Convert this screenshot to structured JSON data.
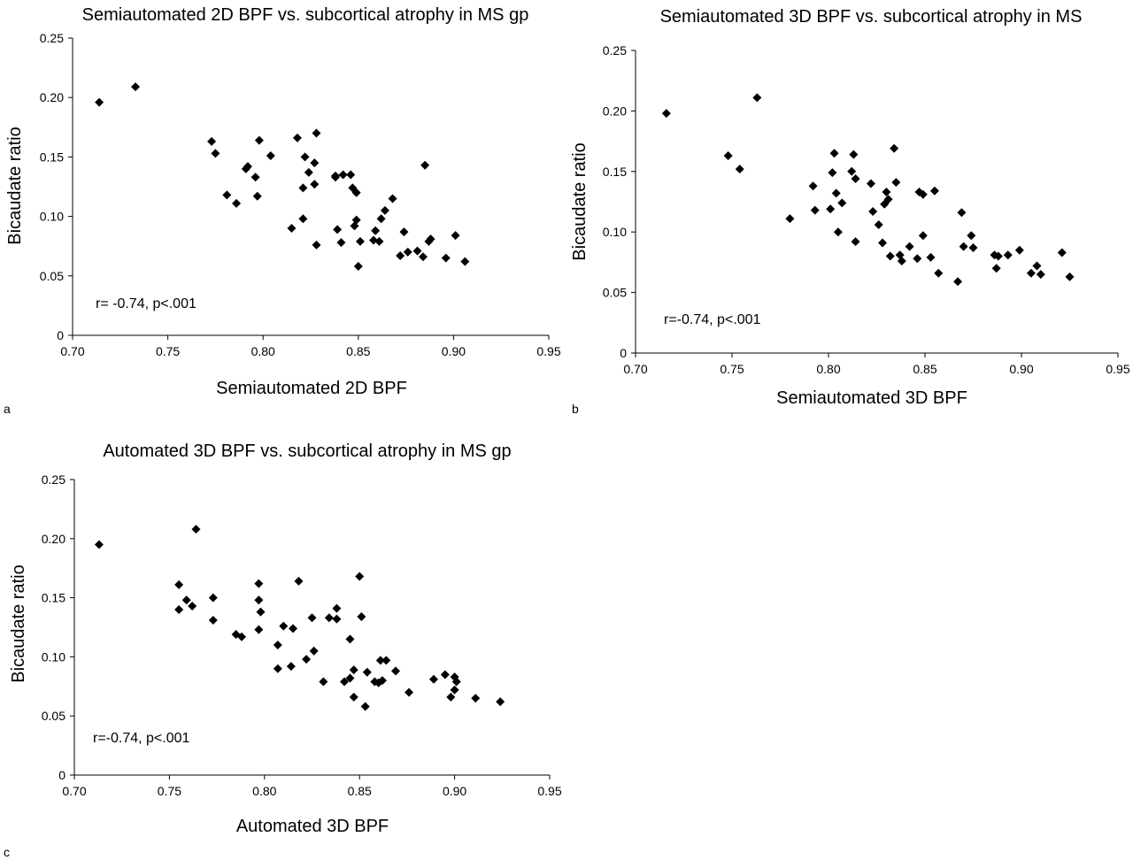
{
  "chart_data": [
    {
      "type": "scatter",
      "panel_label": "a",
      "title": "Semiautomated 2D BPF vs. subcortical atrophy in MS gp",
      "xlabel": "Semiautomated 2D BPF",
      "ylabel": "Bicaudate ratio",
      "xlim": [
        0.7,
        0.95
      ],
      "ylim": [
        0,
        0.25
      ],
      "x_ticks": [
        "0.70",
        "0.75",
        "0.80",
        "0.85",
        "0.90",
        "0.95"
      ],
      "y_ticks": [
        "0",
        "0.05",
        "0.10",
        "0.15",
        "0.20",
        "0.25"
      ],
      "annotation": "r= -0.74, p<.001",
      "marker": "diamond",
      "marker_color": "#000000",
      "grid": false,
      "legend": "none",
      "points": [
        [
          0.714,
          0.196
        ],
        [
          0.733,
          0.209
        ],
        [
          0.773,
          0.163
        ],
        [
          0.775,
          0.153
        ],
        [
          0.781,
          0.118
        ],
        [
          0.786,
          0.111
        ],
        [
          0.791,
          0.14
        ],
        [
          0.792,
          0.142
        ],
        [
          0.796,
          0.133
        ],
        [
          0.797,
          0.117
        ],
        [
          0.798,
          0.164
        ],
        [
          0.804,
          0.151
        ],
        [
          0.815,
          0.09
        ],
        [
          0.818,
          0.166
        ],
        [
          0.821,
          0.124
        ],
        [
          0.821,
          0.098
        ],
        [
          0.822,
          0.15
        ],
        [
          0.824,
          0.137
        ],
        [
          0.827,
          0.145
        ],
        [
          0.827,
          0.127
        ],
        [
          0.828,
          0.17
        ],
        [
          0.828,
          0.076
        ],
        [
          0.838,
          0.134
        ],
        [
          0.838,
          0.133
        ],
        [
          0.839,
          0.089
        ],
        [
          0.841,
          0.078
        ],
        [
          0.842,
          0.135
        ],
        [
          0.846,
          0.135
        ],
        [
          0.847,
          0.124
        ],
        [
          0.848,
          0.092
        ],
        [
          0.849,
          0.12
        ],
        [
          0.849,
          0.097
        ],
        [
          0.85,
          0.058
        ],
        [
          0.851,
          0.079
        ],
        [
          0.858,
          0.08
        ],
        [
          0.859,
          0.088
        ],
        [
          0.861,
          0.079
        ],
        [
          0.862,
          0.098
        ],
        [
          0.864,
          0.105
        ],
        [
          0.868,
          0.115
        ],
        [
          0.872,
          0.067
        ],
        [
          0.874,
          0.087
        ],
        [
          0.876,
          0.07
        ],
        [
          0.881,
          0.071
        ],
        [
          0.884,
          0.066
        ],
        [
          0.885,
          0.143
        ],
        [
          0.887,
          0.079
        ],
        [
          0.888,
          0.081
        ],
        [
          0.896,
          0.065
        ],
        [
          0.901,
          0.084
        ],
        [
          0.906,
          0.062
        ]
      ]
    },
    {
      "type": "scatter",
      "panel_label": "b",
      "title": "Semiautomated 3D BPF vs. subcortical atrophy in MS",
      "xlabel": "Semiautomated 3D BPF",
      "ylabel": "Bicaudate ratio",
      "xlim": [
        0.7,
        0.95
      ],
      "ylim": [
        0,
        0.25
      ],
      "x_ticks": [
        "0.70",
        "0.75",
        "0.80",
        "0.85",
        "0.90",
        "0.95"
      ],
      "y_ticks": [
        "0",
        "0.05",
        "0.10",
        "0.15",
        "0.20",
        "0.25"
      ],
      "annotation": "r=-0.74, p<.001",
      "marker": "diamond",
      "marker_color": "#000000",
      "grid": false,
      "legend": "none",
      "points": [
        [
          0.716,
          0.198
        ],
        [
          0.748,
          0.163
        ],
        [
          0.754,
          0.152
        ],
        [
          0.763,
          0.211
        ],
        [
          0.78,
          0.111
        ],
        [
          0.792,
          0.138
        ],
        [
          0.793,
          0.118
        ],
        [
          0.801,
          0.119
        ],
        [
          0.802,
          0.149
        ],
        [
          0.803,
          0.165
        ],
        [
          0.804,
          0.132
        ],
        [
          0.805,
          0.1
        ],
        [
          0.807,
          0.124
        ],
        [
          0.812,
          0.15
        ],
        [
          0.813,
          0.164
        ],
        [
          0.814,
          0.144
        ],
        [
          0.814,
          0.092
        ],
        [
          0.822,
          0.14
        ],
        [
          0.823,
          0.117
        ],
        [
          0.826,
          0.106
        ],
        [
          0.828,
          0.091
        ],
        [
          0.829,
          0.123
        ],
        [
          0.83,
          0.133
        ],
        [
          0.831,
          0.127
        ],
        [
          0.832,
          0.08
        ],
        [
          0.834,
          0.169
        ],
        [
          0.835,
          0.141
        ],
        [
          0.837,
          0.081
        ],
        [
          0.838,
          0.076
        ],
        [
          0.842,
          0.088
        ],
        [
          0.846,
          0.078
        ],
        [
          0.847,
          0.133
        ],
        [
          0.849,
          0.131
        ],
        [
          0.849,
          0.097
        ],
        [
          0.853,
          0.079
        ],
        [
          0.855,
          0.134
        ],
        [
          0.857,
          0.066
        ],
        [
          0.867,
          0.059
        ],
        [
          0.869,
          0.116
        ],
        [
          0.87,
          0.088
        ],
        [
          0.874,
          0.097
        ],
        [
          0.875,
          0.087
        ],
        [
          0.886,
          0.081
        ],
        [
          0.887,
          0.07
        ],
        [
          0.888,
          0.08
        ],
        [
          0.893,
          0.081
        ],
        [
          0.899,
          0.085
        ],
        [
          0.905,
          0.066
        ],
        [
          0.908,
          0.072
        ],
        [
          0.91,
          0.065
        ],
        [
          0.921,
          0.083
        ],
        [
          0.925,
          0.063
        ]
      ]
    },
    {
      "type": "scatter",
      "panel_label": "c",
      "title": "Automated 3D BPF vs. subcortical atrophy in MS gp",
      "xlabel": "Automated 3D BPF",
      "ylabel": "Bicaudate ratio",
      "xlim": [
        0.7,
        0.95
      ],
      "ylim": [
        0,
        0.25
      ],
      "x_ticks": [
        "0.70",
        "0.75",
        "0.80",
        "0.85",
        "0.90",
        "0.95"
      ],
      "y_ticks": [
        "0",
        "0.05",
        "0.10",
        "0.15",
        "0.20",
        "0.25"
      ],
      "annotation": "r=-0.74, p<.001",
      "marker": "diamond",
      "marker_color": "#000000",
      "grid": false,
      "legend": "none",
      "points": [
        [
          0.713,
          0.195
        ],
        [
          0.755,
          0.161
        ],
        [
          0.755,
          0.14
        ],
        [
          0.759,
          0.148
        ],
        [
          0.762,
          0.143
        ],
        [
          0.764,
          0.208
        ],
        [
          0.773,
          0.15
        ],
        [
          0.773,
          0.131
        ],
        [
          0.785,
          0.119
        ],
        [
          0.788,
          0.117
        ],
        [
          0.797,
          0.162
        ],
        [
          0.797,
          0.148
        ],
        [
          0.798,
          0.138
        ],
        [
          0.797,
          0.123
        ],
        [
          0.807,
          0.11
        ],
        [
          0.807,
          0.09
        ],
        [
          0.81,
          0.126
        ],
        [
          0.814,
          0.092
        ],
        [
          0.815,
          0.124
        ],
        [
          0.818,
          0.164
        ],
        [
          0.822,
          0.098
        ],
        [
          0.825,
          0.133
        ],
        [
          0.826,
          0.105
        ],
        [
          0.831,
          0.079
        ],
        [
          0.834,
          0.133
        ],
        [
          0.838,
          0.141
        ],
        [
          0.838,
          0.132
        ],
        [
          0.842,
          0.079
        ],
        [
          0.845,
          0.082
        ],
        [
          0.845,
          0.115
        ],
        [
          0.847,
          0.089
        ],
        [
          0.847,
          0.066
        ],
        [
          0.85,
          0.168
        ],
        [
          0.851,
          0.134
        ],
        [
          0.853,
          0.058
        ],
        [
          0.854,
          0.087
        ],
        [
          0.858,
          0.079
        ],
        [
          0.86,
          0.078
        ],
        [
          0.861,
          0.097
        ],
        [
          0.862,
          0.08
        ],
        [
          0.864,
          0.097
        ],
        [
          0.869,
          0.088
        ],
        [
          0.876,
          0.07
        ],
        [
          0.889,
          0.081
        ],
        [
          0.895,
          0.085
        ],
        [
          0.898,
          0.066
        ],
        [
          0.9,
          0.083
        ],
        [
          0.9,
          0.072
        ],
        [
          0.901,
          0.079
        ],
        [
          0.911,
          0.065
        ],
        [
          0.924,
          0.062
        ]
      ]
    }
  ]
}
